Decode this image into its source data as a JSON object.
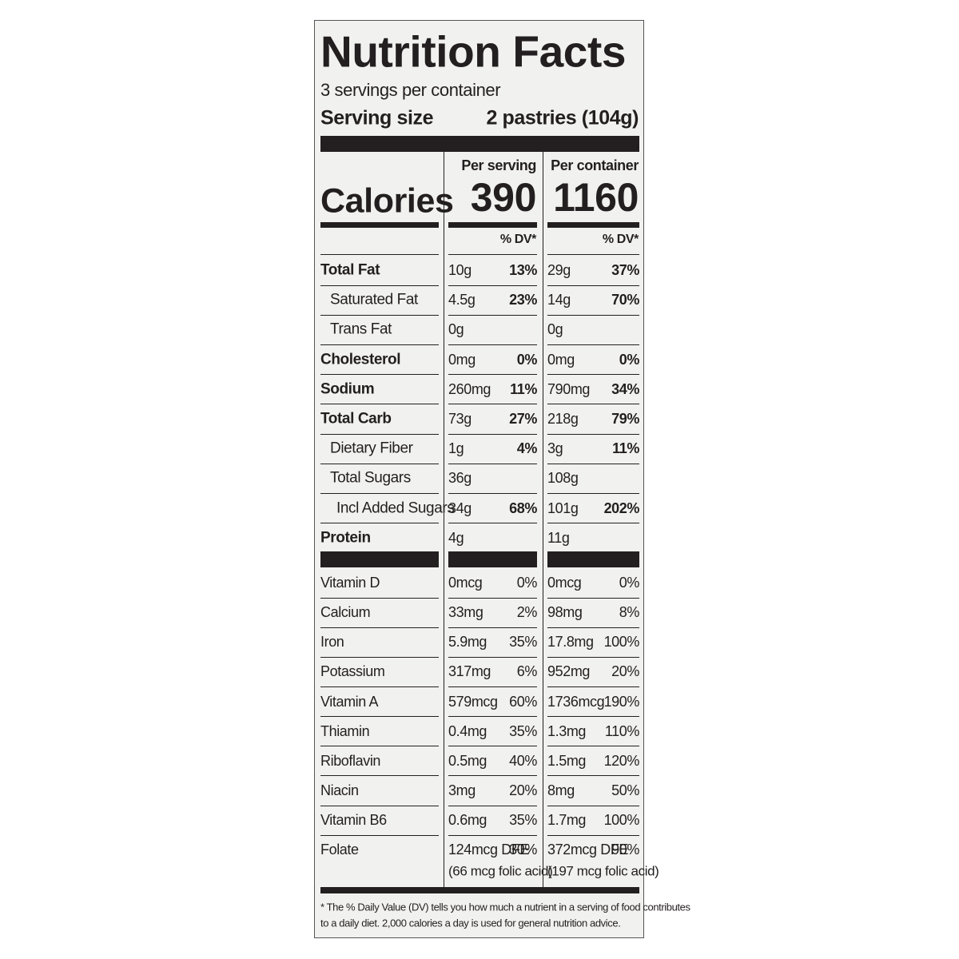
{
  "title": "Nutrition Facts",
  "servings": "3 servings per container",
  "serving_size": {
    "label": "Serving size",
    "value": "2 pastries (104g)"
  },
  "columns": [
    "Per serving",
    "Per container"
  ],
  "calories": {
    "label": "Calories",
    "values": [
      390,
      1160
    ]
  },
  "dv_header": [
    "% DV*",
    "% DV*"
  ],
  "nutrients": [
    {
      "name": "Total Fat",
      "bold": true,
      "indent": 0,
      "serving": [
        "10g",
        "13%"
      ],
      "container": [
        "29g",
        "37%"
      ]
    },
    {
      "name": "Saturated Fat",
      "bold": false,
      "indent": 1,
      "serving": [
        "4.5g",
        "23%"
      ],
      "container": [
        "14g",
        "70%"
      ]
    },
    {
      "name": "Trans Fat",
      "bold": false,
      "indent": 1,
      "serving": [
        "0g"
      ],
      "container": [
        "0g"
      ]
    },
    {
      "name": "Cholesterol",
      "bold": true,
      "indent": 0,
      "serving": [
        "0mg",
        "0%"
      ],
      "container": [
        "0mg",
        "0%"
      ]
    },
    {
      "name": "Sodium",
      "bold": true,
      "indent": 0,
      "serving": [
        "260mg",
        "11%"
      ],
      "container": [
        "790mg",
        "34%"
      ]
    },
    {
      "name": "Total Carb",
      "bold": true,
      "indent": 0,
      "serving": [
        "73g",
        "27%"
      ],
      "container": [
        "218g",
        "79%"
      ]
    },
    {
      "name": "Dietary Fiber",
      "bold": false,
      "indent": 1,
      "serving": [
        "1g",
        "4%"
      ],
      "container": [
        "3g",
        "11%"
      ]
    },
    {
      "name": "Total Sugars",
      "bold": false,
      "indent": 1,
      "serving": [
        "36g"
      ],
      "container": [
        "108g"
      ]
    },
    {
      "name": "Incl Added Sugars",
      "bold": false,
      "indent": 2,
      "serving": [
        "34g",
        "68%"
      ],
      "container": [
        "101g",
        "202%"
      ]
    },
    {
      "name": "Protein",
      "bold": true,
      "indent": 0,
      "serving": [
        "4g"
      ],
      "container": [
        "11g"
      ]
    }
  ],
  "vitamins": [
    {
      "name": "Vitamin D",
      "serving": [
        "0mcg",
        "0%"
      ],
      "container": [
        "0mcg",
        "0%"
      ]
    },
    {
      "name": "Calcium",
      "serving": [
        "33mg",
        "2%"
      ],
      "container": [
        "98mg",
        "8%"
      ]
    },
    {
      "name": "Iron",
      "serving": [
        "5.9mg",
        "35%"
      ],
      "container": [
        "17.8mg",
        "100%"
      ]
    },
    {
      "name": "Potassium",
      "serving": [
        "317mg",
        "6%"
      ],
      "container": [
        "952mg",
        "20%"
      ]
    },
    {
      "name": "Vitamin A",
      "serving": [
        "579mcg",
        "60%"
      ],
      "container": [
        "1736mcg",
        "190%"
      ]
    },
    {
      "name": "Thiamin",
      "serving": [
        "0.4mg",
        "35%"
      ],
      "container": [
        "1.3mg",
        "110%"
      ]
    },
    {
      "name": "Riboflavin",
      "serving": [
        "0.5mg",
        "40%"
      ],
      "container": [
        "1.5mg",
        "120%"
      ]
    },
    {
      "name": "Niacin",
      "serving": [
        "3mg",
        "20%"
      ],
      "container": [
        "8mg",
        "50%"
      ]
    },
    {
      "name": "Vitamin B6",
      "serving": [
        "0.6mg",
        "35%"
      ],
      "container": [
        "1.7mg",
        "100%"
      ]
    },
    {
      "name": "Folate",
      "serving": [
        "124mcg DFE",
        "30%",
        "(66 mcg folic acid)"
      ],
      "container": [
        "372mcg DFE",
        "90%",
        "(197 mcg folic acid)"
      ]
    }
  ],
  "footnote": [
    "* The % Daily Value (DV) tells you how much a nutrient in a serving of food contributes",
    "to a daily diet. 2,000 calories a day is used for general nutrition advice."
  ]
}
